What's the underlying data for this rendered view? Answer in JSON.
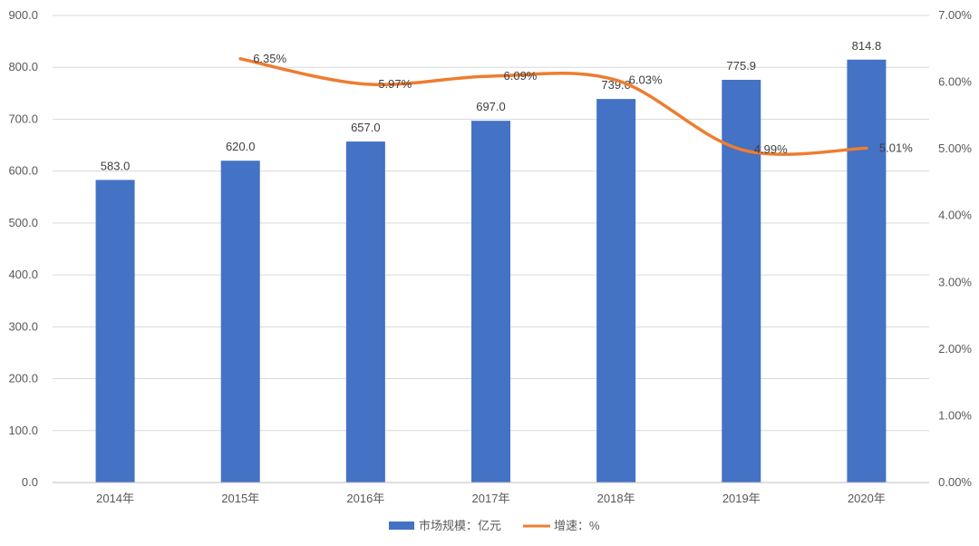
{
  "chart_data": {
    "type": "bar",
    "categories": [
      "2014年",
      "2015年",
      "2016年",
      "2017年",
      "2018年",
      "2019年",
      "2020年"
    ],
    "series": [
      {
        "name": "市场规模：亿元",
        "type": "bar",
        "axis": "left",
        "values": [
          583.0,
          620.0,
          657.0,
          697.0,
          739.0,
          775.9,
          814.8
        ],
        "labels": [
          "583.0",
          "620.0",
          "657.0",
          "697.0",
          "739.0",
          "775.9",
          "814.8"
        ],
        "color": "#4472C4"
      },
      {
        "name": "增速：%",
        "type": "line",
        "axis": "right",
        "values": [
          null,
          6.35,
          5.97,
          6.09,
          6.03,
          4.99,
          5.01
        ],
        "labels": [
          "",
          "6.35%",
          "5.97%",
          "6.09%",
          "6.03%",
          "4.99%",
          "5.01%"
        ],
        "color": "#ED7D31"
      }
    ],
    "y_left": {
      "min": 0,
      "max": 900,
      "step": 100,
      "ticks": [
        "0.0",
        "100.0",
        "200.0",
        "300.0",
        "400.0",
        "500.0",
        "600.0",
        "700.0",
        "800.0",
        "900.0"
      ]
    },
    "y_right": {
      "min": 0,
      "max": 7,
      "step": 1,
      "ticks": [
        "0.00%",
        "1.00%",
        "2.00%",
        "3.00%",
        "4.00%",
        "5.00%",
        "6.00%",
        "7.00%"
      ]
    },
    "grid": true,
    "legend_position": "bottom-center",
    "legend": [
      "市场规模：亿元",
      "增速：%"
    ]
  }
}
